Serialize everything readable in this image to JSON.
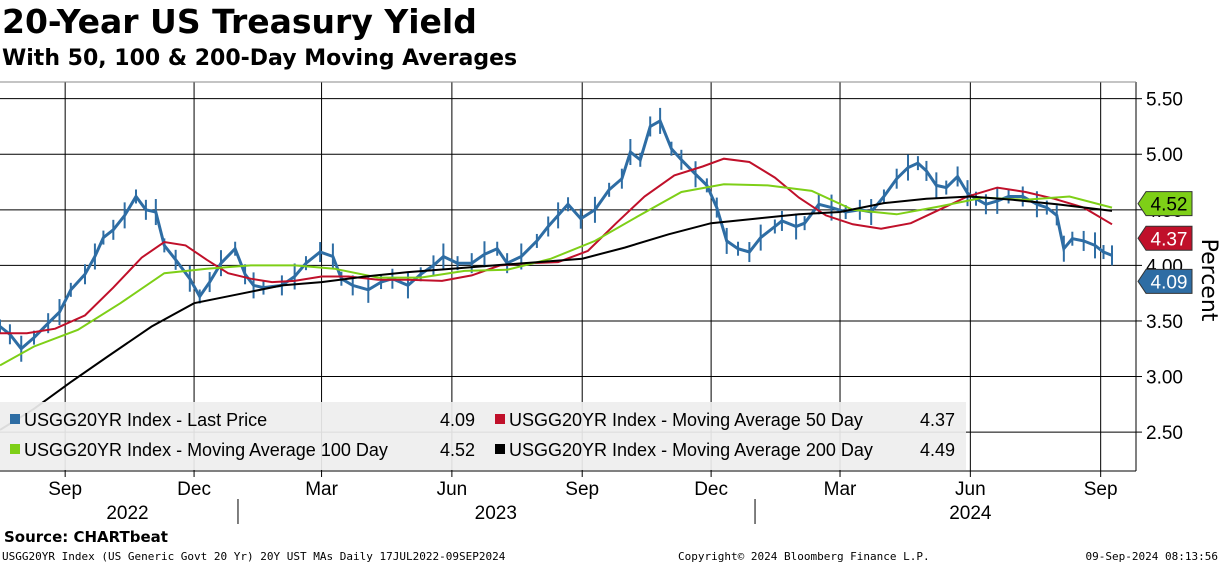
{
  "header": {
    "title": "20-Year US Treasury Yield",
    "subtitle": "With 50, 100 & 200-Day Moving Averages"
  },
  "footer": {
    "source": "Source: CHARTbeat",
    "description": "USGG20YR Index (US Generic Govt 20 Yr) 20Y UST MAs  Daily 17JUL2022-09SEP2024",
    "copyright": "Copyright© 2024 Bloomberg Finance L.P.",
    "timestamp": "09-Sep-2024 08:13:56"
  },
  "chart_data": {
    "type": "line",
    "title": "20-Year US Treasury Yield",
    "subtitle": "With 50, 100 & 200-Day Moving Averages",
    "ylabel": "Percent",
    "ylim": [
      2.15,
      5.65
    ],
    "y_ticks": [
      2.5,
      3.0,
      3.5,
      4.0,
      4.5,
      5.0,
      5.5
    ],
    "y_tick_labels": [
      "2.50",
      "3.00",
      "3.50",
      "4.00",
      "4.50",
      "5.00",
      "5.50"
    ],
    "y_axis_side": "right",
    "grid": true,
    "x_range": [
      "2022-07-17",
      "2024-09-09"
    ],
    "month_ticks": [
      {
        "date": "2022-09-01",
        "label": "Sep"
      },
      {
        "date": "2022-12-01",
        "label": "Dec"
      },
      {
        "date": "2023-03-01",
        "label": "Mar"
      },
      {
        "date": "2023-06-01",
        "label": "Jun"
      },
      {
        "date": "2023-09-01",
        "label": "Sep"
      },
      {
        "date": "2023-12-01",
        "label": "Dec"
      },
      {
        "date": "2024-03-01",
        "label": "Mar"
      },
      {
        "date": "2024-06-01",
        "label": "Jun"
      },
      {
        "date": "2024-09-01",
        "label": "Sep"
      }
    ],
    "year_labels": [
      {
        "date": "2022-10-15",
        "label": "2022"
      },
      {
        "date": "2023-07-02",
        "label": "2023"
      },
      {
        "date": "2024-06-01",
        "label": "2024"
      }
    ],
    "year_separators": [
      "2023-01-01",
      "2024-01-01"
    ],
    "legend_position": "bottom-left",
    "series": [
      {
        "name": "USGG20YR Index - Last Price",
        "legend_value": "4.09",
        "color": "#2e6da4",
        "style": "bars",
        "x": [
          "2022-07-17",
          "2022-07-24",
          "2022-08-01",
          "2022-08-10",
          "2022-08-20",
          "2022-08-28",
          "2022-09-05",
          "2022-09-15",
          "2022-09-22",
          "2022-09-28",
          "2022-10-05",
          "2022-10-13",
          "2022-10-21",
          "2022-10-28",
          "2022-11-04",
          "2022-11-10",
          "2022-11-18",
          "2022-11-28",
          "2022-12-05",
          "2022-12-12",
          "2022-12-20",
          "2022-12-30",
          "2023-01-06",
          "2023-01-12",
          "2023-01-19",
          "2023-02-01",
          "2023-02-10",
          "2023-02-18",
          "2023-02-28",
          "2023-03-09",
          "2023-03-15",
          "2023-03-23",
          "2023-04-03",
          "2023-04-12",
          "2023-04-20",
          "2023-05-01",
          "2023-05-10",
          "2023-05-19",
          "2023-05-26",
          "2023-06-05",
          "2023-06-15",
          "2023-06-24",
          "2023-07-03",
          "2023-07-10",
          "2023-07-20",
          "2023-07-31",
          "2023-08-08",
          "2023-08-15",
          "2023-08-22",
          "2023-08-31",
          "2023-09-10",
          "2023-09-20",
          "2023-09-29",
          "2023-10-05",
          "2023-10-12",
          "2023-10-19",
          "2023-10-26",
          "2023-11-03",
          "2023-11-10",
          "2023-11-20",
          "2023-11-28",
          "2023-12-05",
          "2023-12-12",
          "2023-12-20",
          "2023-12-28",
          "2024-01-05",
          "2024-01-15",
          "2024-01-20",
          "2024-01-30",
          "2024-02-05",
          "2024-02-15",
          "2024-02-24",
          "2024-03-05",
          "2024-03-15",
          "2024-03-23",
          "2024-04-01",
          "2024-04-10",
          "2024-04-18",
          "2024-04-25",
          "2024-05-01",
          "2024-05-08",
          "2024-05-15",
          "2024-05-23",
          "2024-05-30",
          "2024-06-05",
          "2024-06-12",
          "2024-06-20",
          "2024-06-28",
          "2024-07-08",
          "2024-07-18",
          "2024-07-25",
          "2024-08-01",
          "2024-08-06",
          "2024-08-12",
          "2024-08-20",
          "2024-08-28",
          "2024-09-03",
          "2024-09-09"
        ],
        "y": [
          3.45,
          3.38,
          3.25,
          3.35,
          3.48,
          3.58,
          3.78,
          3.92,
          4.08,
          4.25,
          4.32,
          4.45,
          4.62,
          4.5,
          4.48,
          4.18,
          4.05,
          3.88,
          3.72,
          3.85,
          4.02,
          4.15,
          3.92,
          3.82,
          3.8,
          3.82,
          3.9,
          4.02,
          4.12,
          4.08,
          3.88,
          3.82,
          3.78,
          3.85,
          3.88,
          3.82,
          3.92,
          4.0,
          4.08,
          4.02,
          4.02,
          4.1,
          4.15,
          4.02,
          4.08,
          4.22,
          4.35,
          4.45,
          4.55,
          4.42,
          4.5,
          4.68,
          4.78,
          5.02,
          4.95,
          5.25,
          5.3,
          5.05,
          4.95,
          4.82,
          4.72,
          4.52,
          4.22,
          4.15,
          4.12,
          4.25,
          4.35,
          4.4,
          4.35,
          4.38,
          4.55,
          4.52,
          4.48,
          4.5,
          4.48,
          4.62,
          4.78,
          4.88,
          4.92,
          4.85,
          4.72,
          4.7,
          4.8,
          4.65,
          4.6,
          4.55,
          4.58,
          4.62,
          4.62,
          4.55,
          4.52,
          4.45,
          4.15,
          4.24,
          4.22,
          4.18,
          4.12,
          4.09
        ]
      },
      {
        "name": "USGG20YR Index - Moving Average 50 Day",
        "legend_value": "4.37",
        "color": "#c0102a",
        "x": [
          "2022-07-17",
          "2022-08-05",
          "2022-08-25",
          "2022-09-15",
          "2022-10-05",
          "2022-10-25",
          "2022-11-10",
          "2022-11-25",
          "2022-12-10",
          "2022-12-25",
          "2023-01-10",
          "2023-01-25",
          "2023-02-10",
          "2023-03-01",
          "2023-03-20",
          "2023-04-10",
          "2023-05-01",
          "2023-05-25",
          "2023-06-15",
          "2023-07-05",
          "2023-07-25",
          "2023-08-15",
          "2023-09-05",
          "2023-09-25",
          "2023-10-15",
          "2023-11-05",
          "2023-11-25",
          "2023-12-10",
          "2023-12-28",
          "2024-01-15",
          "2024-02-01",
          "2024-02-20",
          "2024-03-10",
          "2024-03-30",
          "2024-04-20",
          "2024-05-10",
          "2024-05-30",
          "2024-06-20",
          "2024-07-10",
          "2024-07-30",
          "2024-08-20",
          "2024-09-09"
        ],
        "y": [
          3.39,
          3.39,
          3.43,
          3.55,
          3.8,
          4.07,
          4.21,
          4.18,
          4.05,
          3.93,
          3.88,
          3.85,
          3.86,
          3.9,
          3.9,
          3.87,
          3.87,
          3.86,
          3.91,
          4.0,
          4.02,
          4.03,
          4.13,
          4.38,
          4.62,
          4.81,
          4.89,
          4.96,
          4.93,
          4.79,
          4.61,
          4.45,
          4.37,
          4.33,
          4.38,
          4.5,
          4.62,
          4.7,
          4.66,
          4.6,
          4.52,
          4.37
        ]
      },
      {
        "name": "USGG20YR Index - Moving Average 100 Day",
        "legend_value": "4.52",
        "color": "#7ecf17",
        "x": [
          "2022-07-17",
          "2022-08-10",
          "2022-09-10",
          "2022-10-10",
          "2022-11-10",
          "2022-12-10",
          "2023-01-10",
          "2023-02-10",
          "2023-03-10",
          "2023-04-10",
          "2023-05-10",
          "2023-06-10",
          "2023-07-10",
          "2023-08-10",
          "2023-09-10",
          "2023-10-10",
          "2023-11-10",
          "2023-12-10",
          "2024-01-10",
          "2024-02-10",
          "2024-03-10",
          "2024-04-10",
          "2024-05-10",
          "2024-06-10",
          "2024-07-10",
          "2024-08-10",
          "2024-09-09"
        ],
        "y": [
          3.1,
          3.27,
          3.42,
          3.66,
          3.93,
          3.97,
          4.0,
          4.0,
          3.97,
          3.89,
          3.89,
          3.95,
          3.96,
          4.06,
          4.22,
          4.44,
          4.66,
          4.73,
          4.72,
          4.67,
          4.5,
          4.46,
          4.53,
          4.61,
          4.59,
          4.62,
          4.52
        ]
      },
      {
        "name": "USGG20YR Index - Moving Average 200 Day",
        "legend_value": "4.49",
        "color": "#000000",
        "x": [
          "2022-07-17",
          "2022-08-10",
          "2022-09-05",
          "2022-10-01",
          "2022-11-01",
          "2022-12-01",
          "2023-01-01",
          "2023-02-01",
          "2023-03-01",
          "2023-04-01",
          "2023-05-01",
          "2023-06-01",
          "2023-07-01",
          "2023-08-01",
          "2023-09-01",
          "2023-10-01",
          "2023-11-01",
          "2023-12-01",
          "2024-01-01",
          "2024-02-01",
          "2024-03-01",
          "2024-04-01",
          "2024-05-01",
          "2024-06-01",
          "2024-07-01",
          "2024-08-01",
          "2024-09-09"
        ],
        "y": [
          2.52,
          2.71,
          2.95,
          3.18,
          3.45,
          3.66,
          3.74,
          3.82,
          3.85,
          3.9,
          3.94,
          3.97,
          4.0,
          4.03,
          4.06,
          4.16,
          4.28,
          4.38,
          4.42,
          4.46,
          4.48,
          4.56,
          4.6,
          4.62,
          4.59,
          4.55,
          4.49
        ]
      }
    ],
    "price_tags": [
      {
        "label": "4.52",
        "value": 4.52,
        "color": "#7ecf17",
        "text_color": "#000000"
      },
      {
        "label": "4.37",
        "value": 4.37,
        "color": "#c0102a",
        "text_color": "#ffffff"
      },
      {
        "label": "4.09",
        "value": 4.09,
        "color": "#2e6da4",
        "text_color": "#ffffff"
      }
    ]
  }
}
